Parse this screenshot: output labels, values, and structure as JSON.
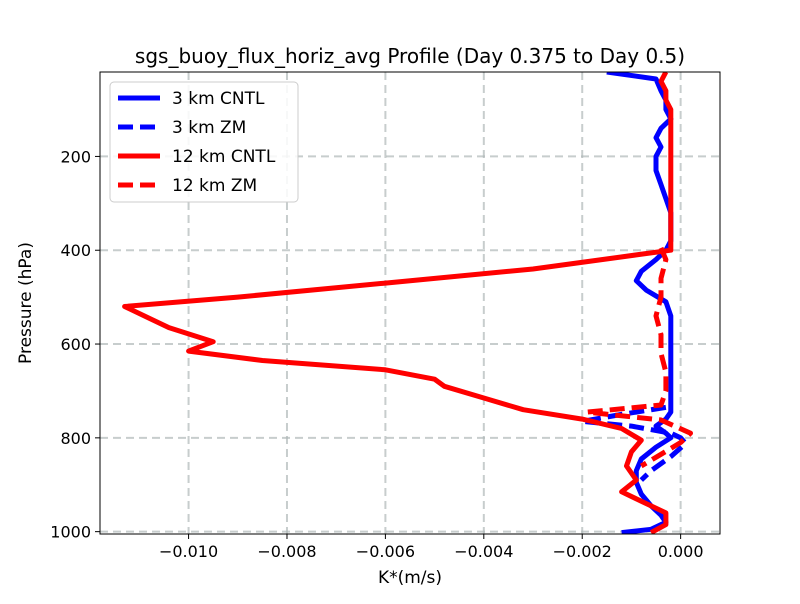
{
  "chart_data": {
    "type": "line",
    "title": "sgs_buoy_flux_horiz_avg Profile (Day 0.375 to Day 0.5)",
    "xlabel": "K*(m/s)",
    "ylabel": "Pressure (hPa)",
    "xlim": [
      -0.0118,
      0.0008
    ],
    "ylim": [
      1005,
      20
    ],
    "y_inverted": true,
    "grid": true,
    "legend_position": "upper-left",
    "xticks": [
      -0.01,
      -0.008,
      -0.006,
      -0.004,
      -0.002,
      0.0
    ],
    "xtick_labels": [
      "−0.010",
      "−0.008",
      "−0.006",
      "−0.004",
      "−0.002",
      "0.000"
    ],
    "yticks": [
      200,
      400,
      600,
      800,
      1000
    ],
    "ytick_labels": [
      "200",
      "400",
      "600",
      "800",
      "1000"
    ],
    "series": [
      {
        "name": "3 km CNTL",
        "color": "#0000ff",
        "dash": "solid",
        "points": [
          [
            -0.0015,
            20
          ],
          [
            -0.0005,
            35
          ],
          [
            -0.0004,
            60
          ],
          [
            -0.0003,
            80
          ],
          [
            -0.0003,
            100
          ],
          [
            -0.0002,
            120
          ],
          [
            -0.0004,
            140
          ],
          [
            -0.0005,
            160
          ],
          [
            -0.0004,
            180
          ],
          [
            -0.0005,
            200
          ],
          [
            -0.0005,
            230
          ],
          [
            -0.0004,
            260
          ],
          [
            -0.0003,
            290
          ],
          [
            -0.0002,
            320
          ],
          [
            -0.0002,
            350
          ],
          [
            -0.0002,
            380
          ],
          [
            -0.0003,
            400
          ],
          [
            -0.0005,
            420
          ],
          [
            -0.0008,
            445
          ],
          [
            -0.0009,
            465
          ],
          [
            -0.0007,
            485
          ],
          [
            -0.0003,
            510
          ],
          [
            -0.0002,
            540
          ],
          [
            -0.0002,
            570
          ],
          [
            -0.0002,
            600
          ],
          [
            -0.0002,
            640
          ],
          [
            -0.0002,
            680
          ],
          [
            -0.0002,
            720
          ],
          [
            -0.0002,
            745
          ],
          [
            -0.0003,
            760
          ],
          [
            -0.0005,
            775
          ],
          [
            -0.0003,
            790
          ],
          [
            -0.0002,
            800
          ],
          [
            -0.0005,
            820
          ],
          [
            -0.0008,
            845
          ],
          [
            -0.0009,
            870
          ],
          [
            -0.0009,
            895
          ],
          [
            -0.0008,
            920
          ],
          [
            -0.0006,
            945
          ],
          [
            -0.0004,
            965
          ],
          [
            -0.0003,
            980
          ],
          [
            -0.0006,
            995
          ],
          [
            -0.0012,
            1002
          ]
        ]
      },
      {
        "name": "3 km ZM",
        "color": "#0000ff",
        "dash": "dashed",
        "points": [
          [
            -0.0003,
            735
          ],
          [
            -0.0012,
            750
          ],
          [
            -0.002,
            765
          ],
          [
            -0.001,
            775
          ],
          [
            -0.0002,
            790
          ],
          [
            0.0,
            800
          ],
          [
            0.0001,
            812
          ],
          [
            -0.0002,
            840
          ],
          [
            -0.0006,
            870
          ],
          [
            -0.0008,
            890
          ]
        ]
      },
      {
        "name": "12 km CNTL",
        "color": "#ff0000",
        "dash": "solid",
        "points": [
          [
            -0.0003,
            20
          ],
          [
            -0.0004,
            40
          ],
          [
            -0.0003,
            60
          ],
          [
            -0.0003,
            80
          ],
          [
            -0.0002,
            100
          ],
          [
            -0.0002,
            120
          ],
          [
            -0.0002,
            140
          ],
          [
            -0.0002,
            160
          ],
          [
            -0.0002,
            180
          ],
          [
            -0.0002,
            200
          ],
          [
            -0.0002,
            240
          ],
          [
            -0.0002,
            280
          ],
          [
            -0.0002,
            320
          ],
          [
            -0.0002,
            360
          ],
          [
            -0.0002,
            400
          ],
          [
            -0.0009,
            410
          ],
          [
            -0.003,
            440
          ],
          [
            -0.006,
            470
          ],
          [
            -0.009,
            500
          ],
          [
            -0.0113,
            520
          ],
          [
            -0.0108,
            545
          ],
          [
            -0.0104,
            565
          ],
          [
            -0.0095,
            595
          ],
          [
            -0.01,
            615
          ],
          [
            -0.0085,
            635
          ],
          [
            -0.006,
            655
          ],
          [
            -0.005,
            675
          ],
          [
            -0.0048,
            690
          ],
          [
            -0.004,
            715
          ],
          [
            -0.0032,
            740
          ],
          [
            -0.002,
            760
          ],
          [
            -0.0012,
            780
          ],
          [
            -0.0008,
            805
          ],
          [
            -0.001,
            830
          ],
          [
            -0.0011,
            860
          ],
          [
            -0.0009,
            890
          ],
          [
            -0.0012,
            915
          ],
          [
            -0.0008,
            935
          ],
          [
            -0.0003,
            960
          ],
          [
            -0.0003,
            985
          ],
          [
            -0.0006,
            1002
          ]
        ]
      },
      {
        "name": "12 km ZM",
        "color": "#ff0000",
        "dash": "dashed",
        "points": [
          [
            -0.0004,
            395
          ],
          [
            -0.0003,
            420
          ],
          [
            -0.0004,
            460
          ],
          [
            -0.0004,
            500
          ],
          [
            -0.0005,
            540
          ],
          [
            -0.0004,
            580
          ],
          [
            -0.0004,
            620
          ],
          [
            -0.0003,
            660
          ],
          [
            -0.0003,
            700
          ],
          [
            -0.0004,
            730
          ],
          [
            -0.0019,
            745
          ],
          [
            -0.0004,
            762
          ],
          [
            0.0002,
            790
          ],
          [
            0.0,
            810
          ],
          [
            -0.0004,
            835
          ],
          [
            -0.0008,
            860
          ]
        ]
      }
    ]
  }
}
